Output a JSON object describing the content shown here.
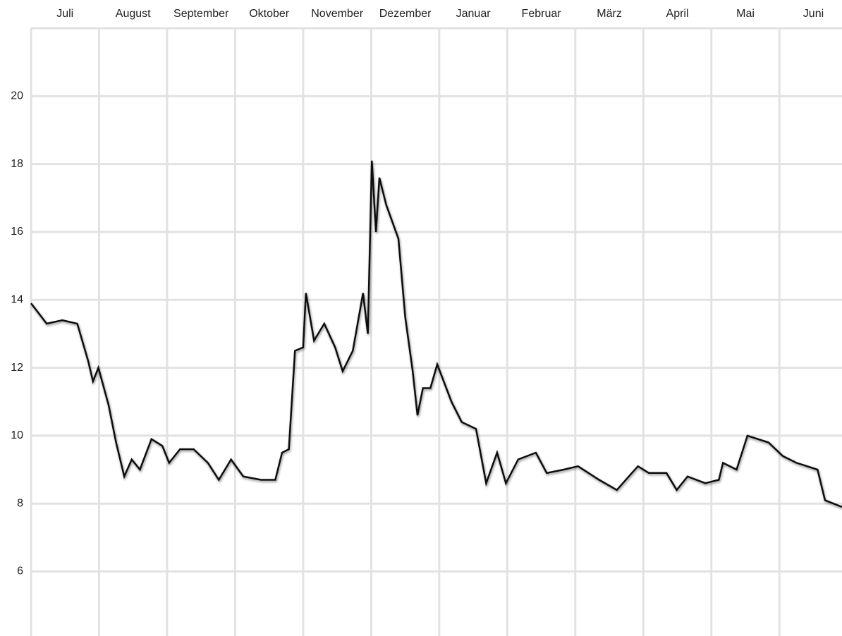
{
  "chart_data": {
    "type": "line",
    "categories": [
      "Juli",
      "August",
      "September",
      "Oktober",
      "November",
      "Dezember",
      "Januar",
      "Februar",
      "März",
      "April",
      "Mai",
      "Juni"
    ],
    "x": [
      0,
      0.23,
      0.46,
      0.68,
      0.84,
      0.91,
      0.99,
      1.14,
      1.25,
      1.37,
      1.48,
      1.6,
      1.77,
      1.93,
      2.03,
      2.19,
      2.39,
      2.6,
      2.76,
      2.94,
      3.12,
      3.38,
      3.59,
      3.69,
      3.79,
      3.88,
      4.0,
      4.04,
      4.16,
      4.31,
      4.47,
      4.58,
      4.73,
      4.88,
      4.95,
      5.01,
      5.07,
      5.12,
      5.22,
      5.4,
      5.5,
      5.61,
      5.68,
      5.76,
      5.87,
      5.97,
      6.18,
      6.33,
      6.54,
      6.69,
      6.85,
      6.98,
      7.16,
      7.42,
      7.58,
      7.83,
      8.04,
      8.35,
      8.61,
      8.92,
      9.08,
      9.34,
      9.49,
      9.65,
      9.91,
      10.11,
      10.17,
      10.37,
      10.53,
      10.84,
      11.05,
      11.25,
      11.56,
      11.67,
      11.92
    ],
    "series": [
      {
        "color": "#111111",
        "values": [
          13.9,
          13.3,
          13.4,
          13.3,
          12.2,
          11.6,
          12.0,
          10.9,
          9.8,
          8.8,
          9.3,
          9.0,
          9.9,
          9.7,
          9.2,
          9.6,
          9.6,
          9.2,
          8.7,
          9.3,
          8.8,
          8.7,
          8.7,
          9.5,
          9.6,
          12.5,
          12.6,
          14.2,
          12.8,
          13.3,
          12.6,
          11.9,
          12.5,
          14.2,
          13.0,
          18.1,
          16.0,
          17.6,
          16.8,
          15.8,
          13.5,
          11.9,
          10.6,
          11.4,
          11.4,
          12.1,
          11.0,
          10.4,
          10.2,
          8.6,
          9.5,
          8.6,
          9.3,
          9.5,
          8.9,
          9.0,
          9.1,
          8.7,
          8.4,
          9.1,
          8.9,
          8.9,
          8.4,
          8.8,
          8.6,
          8.7,
          9.2,
          9.0,
          10.0,
          9.8,
          9.4,
          9.2,
          9.0,
          8.1,
          7.9
        ]
      }
    ],
    "xlim": [
      0,
      11.92
    ],
    "ylim": [
      4.1,
      22
    ],
    "yticks": [
      6,
      8,
      10,
      12,
      14,
      16,
      18,
      20
    ],
    "grid": true
  }
}
